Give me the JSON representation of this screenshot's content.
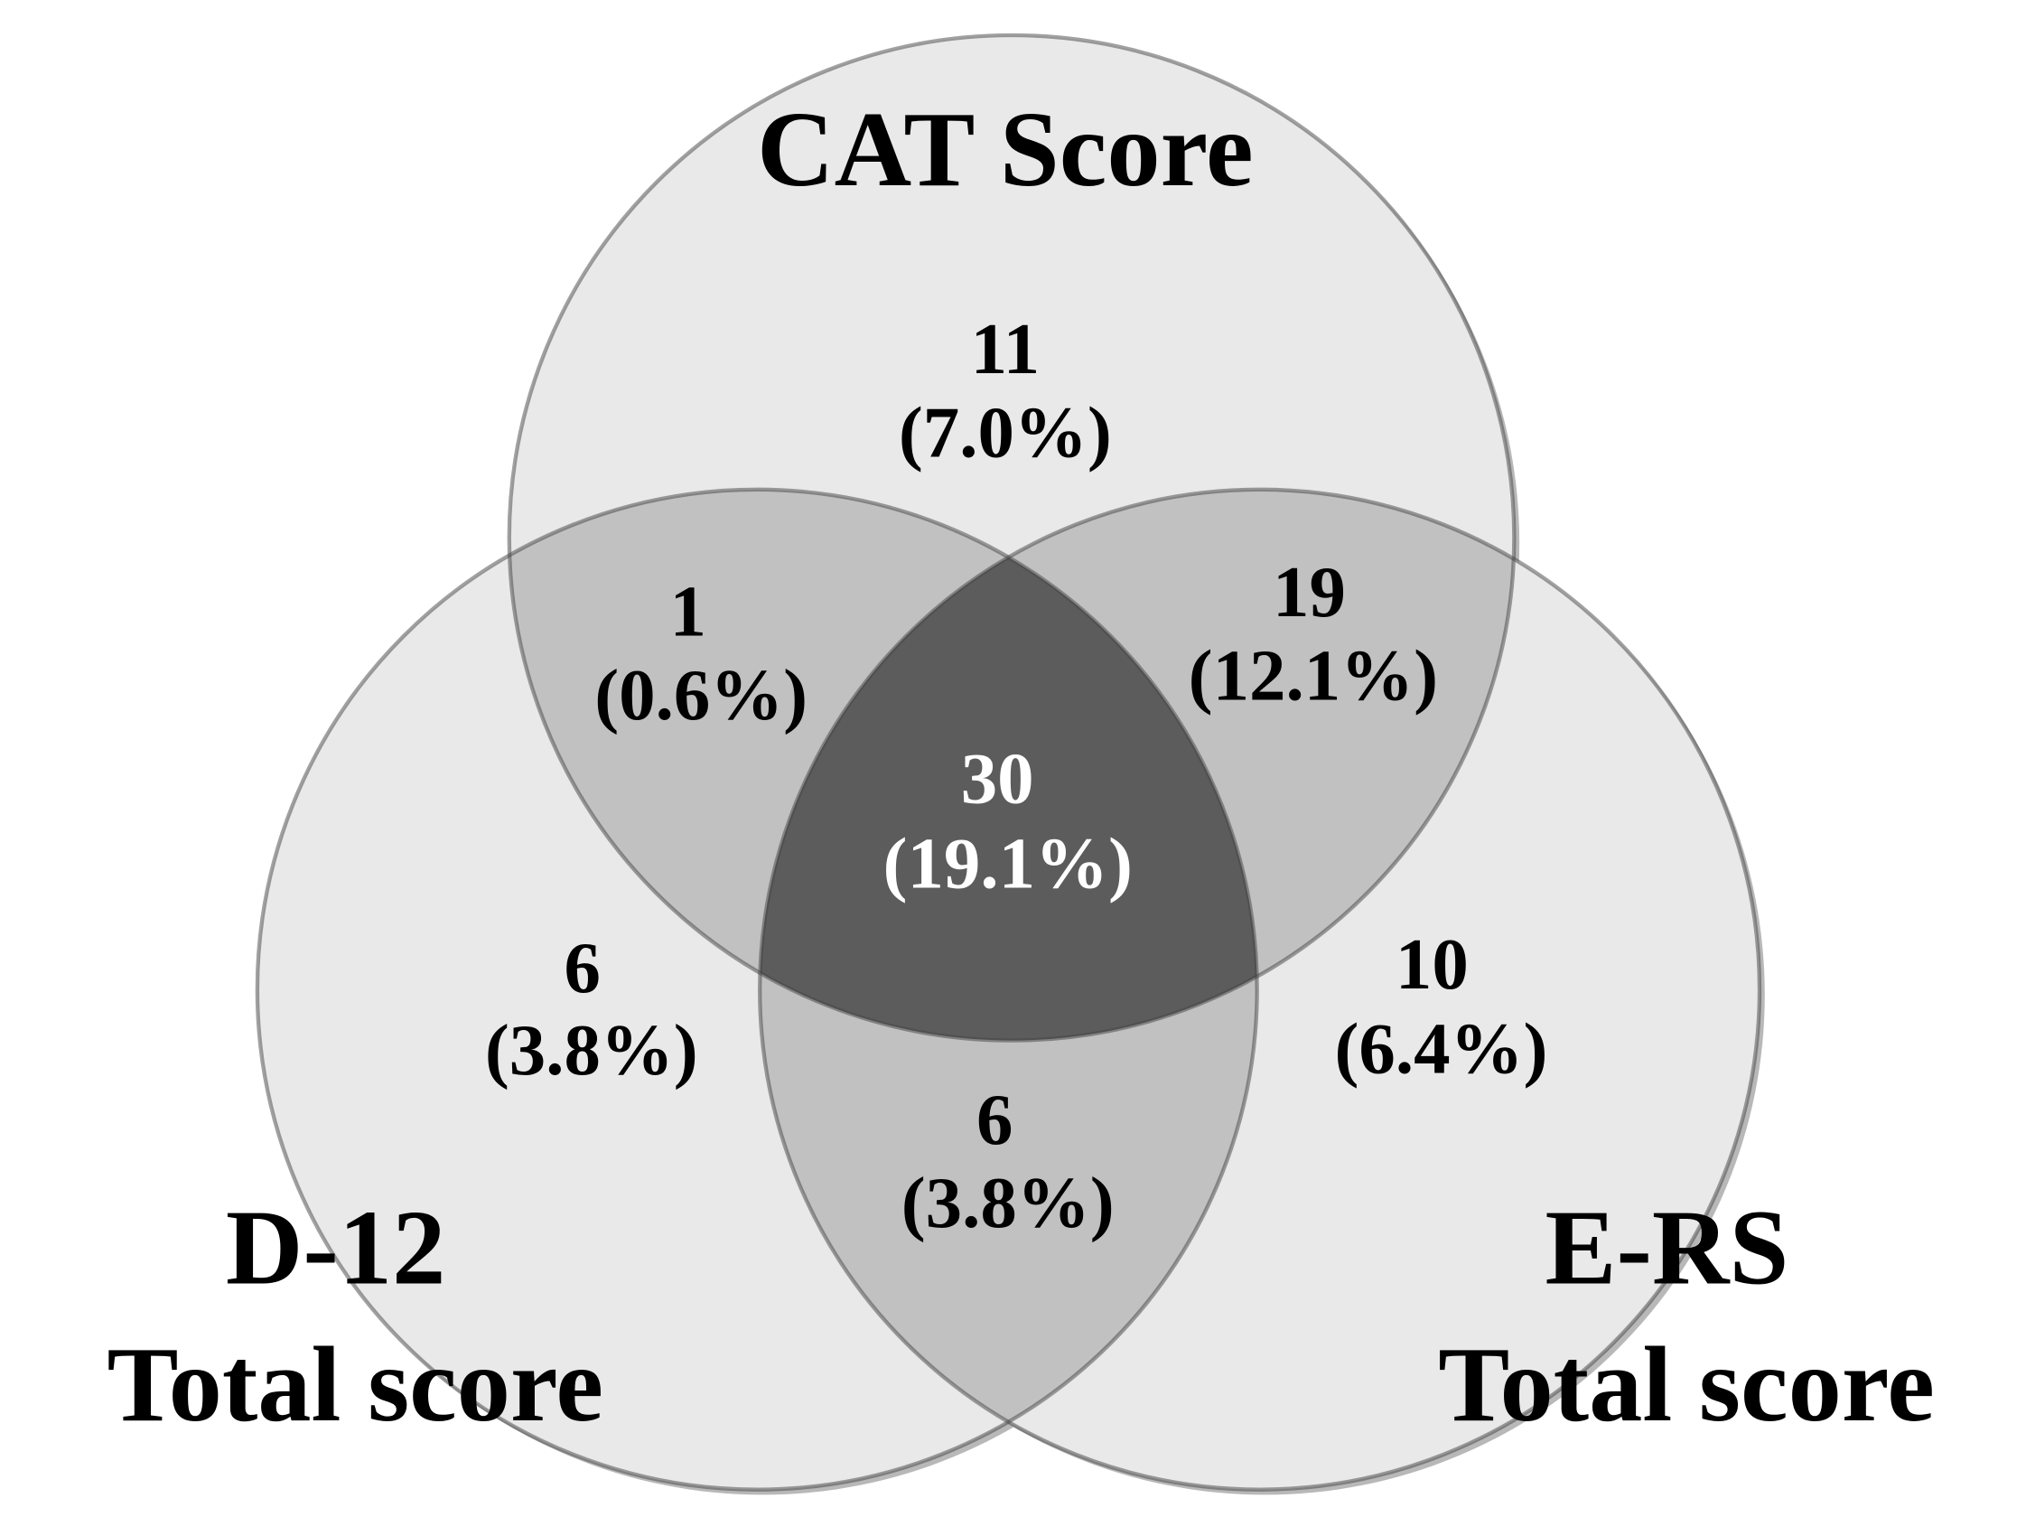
{
  "sets": [
    {
      "label_lines": [
        "CAT Score"
      ]
    },
    {
      "label_lines": [
        "D-12",
        "Total score"
      ]
    },
    {
      "label_lines": [
        "E-RS",
        "Total score"
      ]
    }
  ],
  "regions": [
    {
      "count": "11",
      "percent": "(7.0%)"
    },
    {
      "count": "1",
      "percent": "(0.6%)"
    },
    {
      "count": "19",
      "percent": "(12.1%)"
    },
    {
      "count": "30",
      "percent": "(19.1%)"
    },
    {
      "count": "6",
      "percent": "(3.8%)"
    },
    {
      "count": "10",
      "percent": "(6.4%)"
    },
    {
      "count": "6",
      "percent": "(3.8%)"
    }
  ]
}
